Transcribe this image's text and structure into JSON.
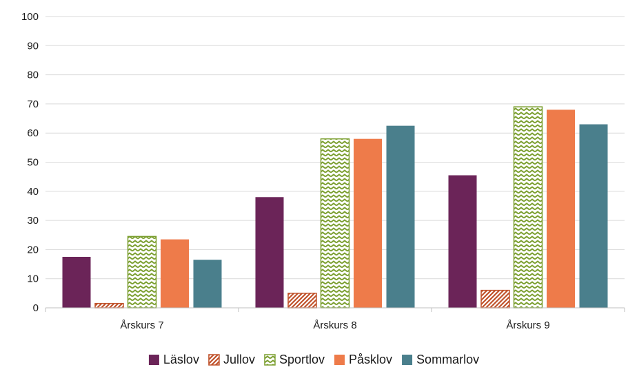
{
  "chart_data": {
    "type": "bar",
    "categories": [
      "Årskurs 7",
      "Årskurs 8",
      "Årskurs 9"
    ],
    "series": [
      {
        "name": "Läslov",
        "values": [
          17.5,
          38,
          45.5
        ],
        "color": "#6b2458",
        "pattern": "solid"
      },
      {
        "name": "Jullov",
        "values": [
          1.5,
          5,
          6
        ],
        "color": "#c0522b",
        "pattern": "diagonal-hatch"
      },
      {
        "name": "Sportlov",
        "values": [
          24.5,
          58,
          69
        ],
        "color": "#7a9e2e",
        "pattern": "zigzag"
      },
      {
        "name": "Påsklov",
        "values": [
          23.5,
          58,
          68
        ],
        "color": "#ee7b4a",
        "pattern": "solid"
      },
      {
        "name": "Sommarlov",
        "values": [
          16.5,
          62.5,
          63
        ],
        "color": "#4a7f8c",
        "pattern": "solid"
      }
    ],
    "yticks": [
      "0",
      "10",
      "20",
      "30",
      "40",
      "50",
      "60",
      "70",
      "80",
      "90",
      "100"
    ],
    "ylim": [
      0,
      100
    ],
    "grid": true,
    "legend_position": "bottom",
    "title": "",
    "xlabel": "",
    "ylabel": ""
  }
}
